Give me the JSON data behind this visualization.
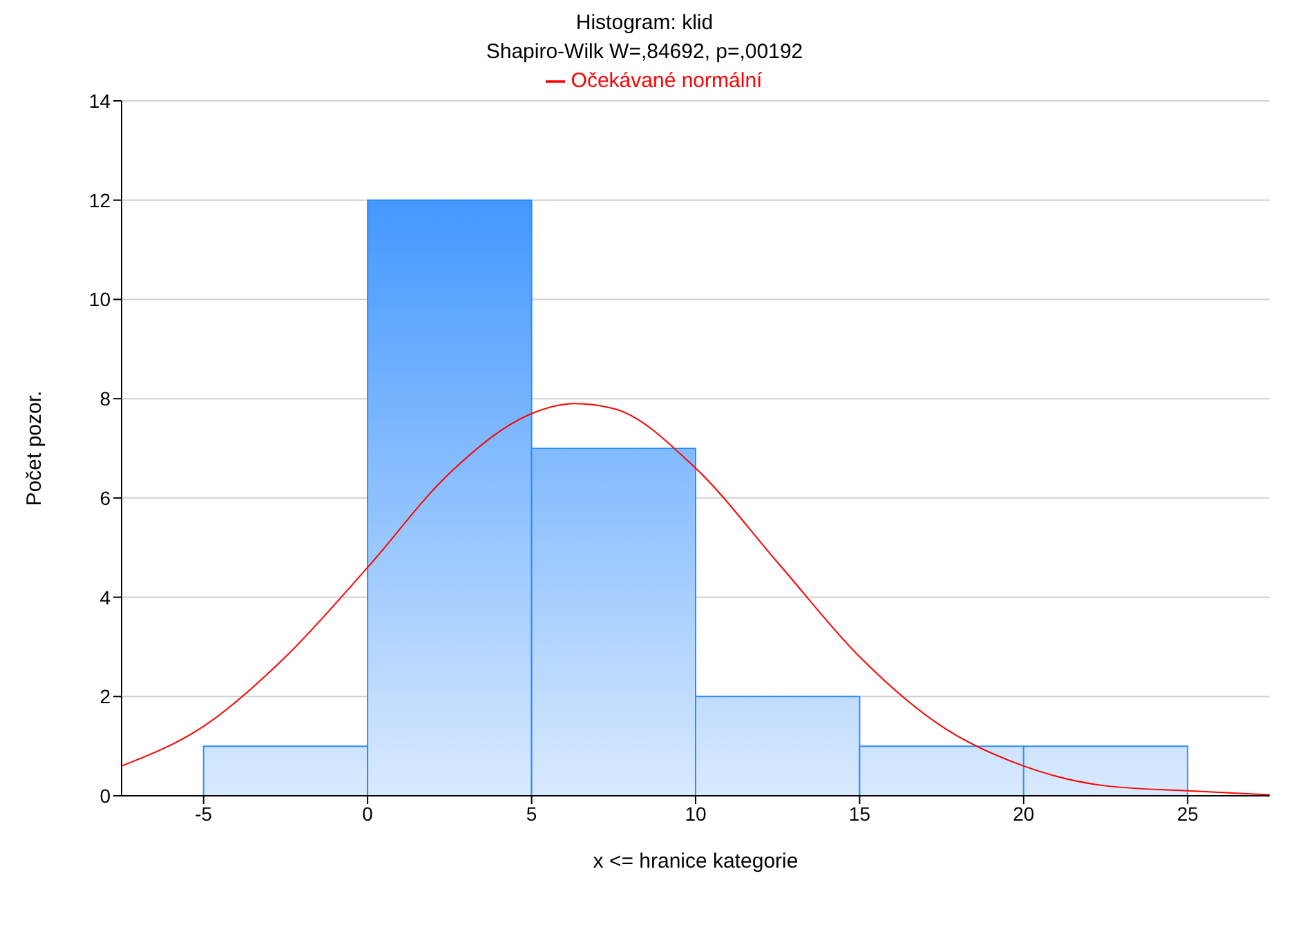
{
  "chart_data": {
    "type": "histogram",
    "title": "Histogram: klid",
    "subtitle": "Shapiro-Wilk W=,84692, p=,00192",
    "xlabel": "x <= hranice kategorie",
    "ylabel": "Počet pozor.",
    "bins": [
      -5,
      0,
      5,
      10,
      15,
      20,
      25
    ],
    "values": [
      1,
      12,
      7,
      2,
      1,
      1
    ],
    "color": "#2e8cff",
    "series": [
      {
        "type": "line",
        "name": "Očekávané normální",
        "color": "#ff0000",
        "x": [
          -7.5,
          -5,
          -2.5,
          0,
          2.5,
          5,
          6.3,
          7.5,
          10,
          12.5,
          15,
          17.5,
          20,
          22.5,
          25,
          27.5
        ],
        "values": [
          0.6,
          1.4,
          2.8,
          4.6,
          6.5,
          7.7,
          7.9,
          7.8,
          6.6,
          4.7,
          2.8,
          1.4,
          0.6,
          0.2,
          0.1,
          0.02
        ]
      }
    ],
    "xlim": [
      -7.5,
      27.5
    ],
    "xticks": [
      -5,
      0,
      5,
      10,
      15,
      20,
      25
    ],
    "ylim": [
      0,
      14
    ],
    "yticks": [
      0,
      2,
      4,
      6,
      8,
      10,
      12,
      14
    ],
    "grid": "y",
    "legend": "top",
    "line_style": "solid",
    "marker": "none"
  }
}
